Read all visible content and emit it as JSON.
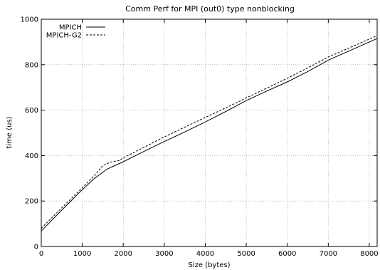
{
  "chart_data": {
    "type": "line",
    "title": "Comm Perf for MPI (out0) type nonblocking",
    "xlabel": "Size (bytes)",
    "ylabel": "time (us)",
    "xlim": [
      0,
      8192
    ],
    "ylim": [
      0,
      1000
    ],
    "xticks": [
      0,
      1000,
      2000,
      3000,
      4000,
      5000,
      6000,
      7000,
      8000
    ],
    "yticks": [
      0,
      200,
      400,
      600,
      800,
      1000
    ],
    "grid": true,
    "legend_position": "top-left",
    "series": [
      {
        "name": "MPICH",
        "style": "solid",
        "x": [
          0,
          500,
          1000,
          1300,
          1600,
          2000,
          2500,
          3000,
          3500,
          4000,
          4500,
          5000,
          5500,
          6000,
          6500,
          7000,
          7500,
          8192
        ],
        "values": [
          68,
          160,
          250,
          300,
          340,
          373,
          418,
          462,
          504,
          548,
          594,
          642,
          684,
          724,
          770,
          820,
          860,
          915
        ]
      },
      {
        "name": "MPICH-G2",
        "style": "dashed",
        "x": [
          0,
          500,
          1000,
          1300,
          1500,
          1700,
          1900,
          2000,
          2500,
          3000,
          3500,
          4000,
          4500,
          5000,
          5500,
          6000,
          6500,
          7000,
          7500,
          8192
        ],
        "values": [
          80,
          170,
          258,
          313,
          356,
          372,
          378,
          390,
          436,
          482,
          525,
          568,
          610,
          654,
          697,
          740,
          786,
          834,
          873,
          928
        ]
      }
    ]
  }
}
